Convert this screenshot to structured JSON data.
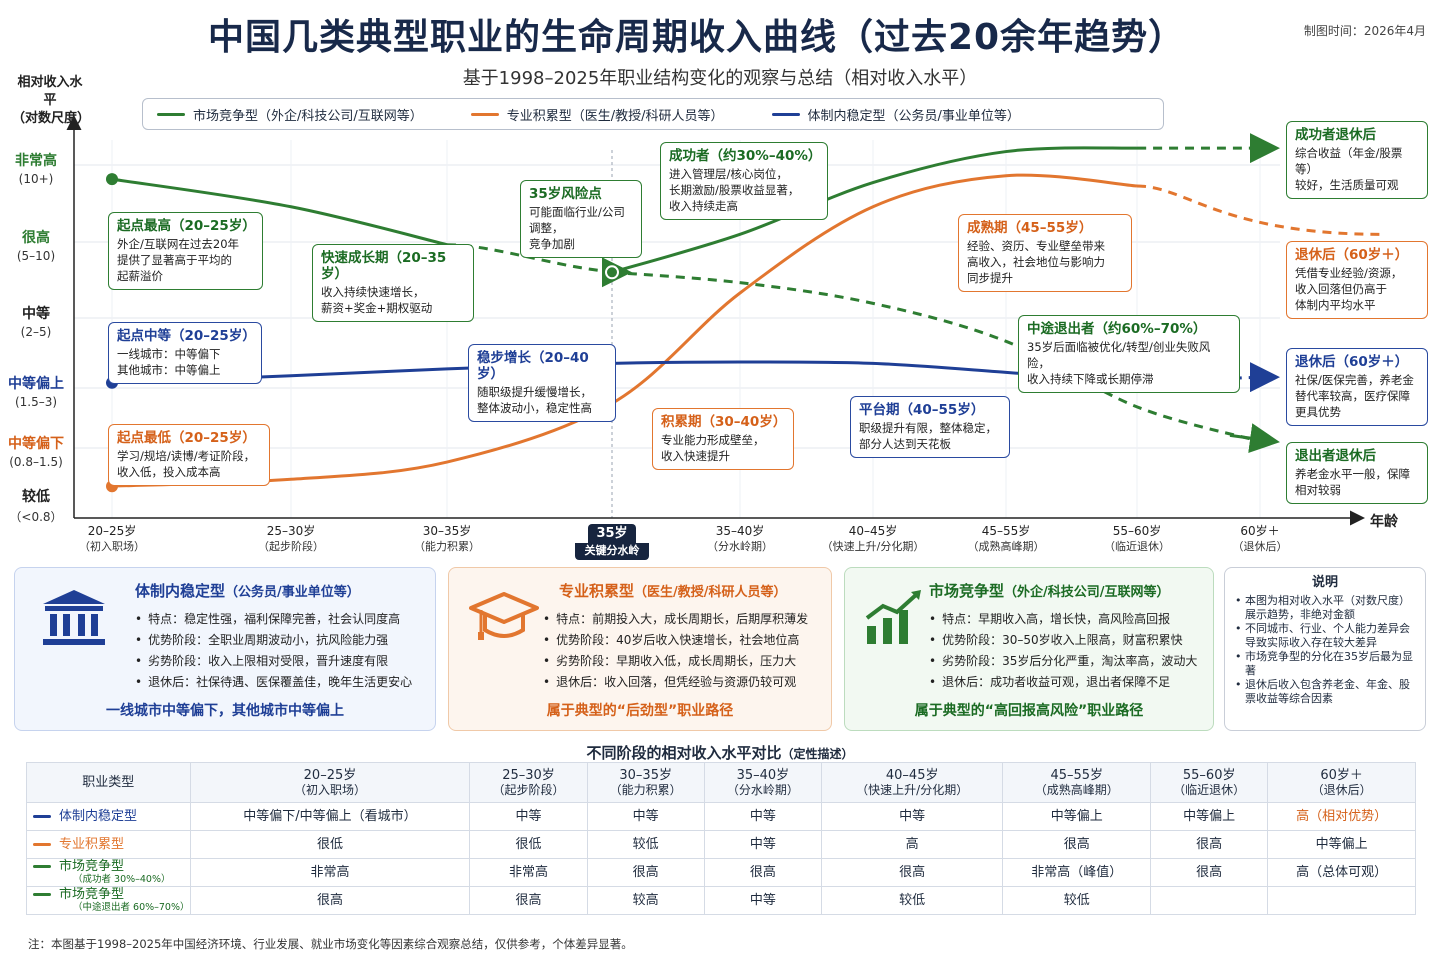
{
  "title": "中国几类典型职业的生命周期收入曲线（过去20余年趋势）",
  "date": "制图时间：2026年4月",
  "subtitle": "基于1998–2025年职业结构变化的观察与总结（相对收入水平）",
  "legend": {
    "market": "市场竞争型（外企/科技公司/互联网等）",
    "pro": "专业积累型（医生/教授/科研人员等）",
    "stable": "体制内稳定型（公务员/事业单位等）"
  },
  "colors": {
    "green": "#2e7d32",
    "orange": "#e2762f",
    "blue": "#1f3f96"
  },
  "yaxis": {
    "title1": "相对收入水平",
    "title2": "（对数尺度）",
    "levels": [
      {
        "label": "非常高",
        "range": "(10+)"
      },
      {
        "label": "很高",
        "range": "(5–10)"
      },
      {
        "label": "中等",
        "range": "(2–5)"
      },
      {
        "label": "中等偏上",
        "range": "(1.5–3)"
      },
      {
        "label": "中等偏下",
        "range": "(0.8–1.5)"
      },
      {
        "label": "较低",
        "range": "（<0.8）"
      }
    ]
  },
  "xaxis": {
    "name": "年龄",
    "ticks": [
      {
        "a": "20–25岁",
        "b": "（初入职场）"
      },
      {
        "a": "25–30岁",
        "b": "（起步阶段）"
      },
      {
        "a": "30–35岁",
        "b": "（能力积累）"
      },
      {
        "a": "35岁",
        "b": "关键分水岭"
      },
      {
        "a": "35–40岁",
        "b": "（分水岭期）"
      },
      {
        "a": "40–45岁",
        "b": "（快速上升/分化期）"
      },
      {
        "a": "45–55岁",
        "b": "（成熟高峰期）"
      },
      {
        "a": "55–60岁",
        "b": "（临近退休）"
      },
      {
        "a": "60岁＋",
        "b": "（退休后）"
      }
    ]
  },
  "annotations": {
    "g1": {
      "h": "起点最高（20–25岁）",
      "t": [
        "外企/互联网在过去20年",
        "提供了显著高于平均的",
        "起薪溢价"
      ]
    },
    "g2": {
      "h": "快速成长期（20–35岁）",
      "t": [
        "收入持续快速增长，",
        "薪资+奖金+期权驱动"
      ]
    },
    "g3": {
      "h": "35岁风险点",
      "t": [
        "可能面临行业/公司调整，",
        "竞争加剧"
      ]
    },
    "g4": {
      "h": "成功者（约30%–40%）",
      "t": [
        "进入管理层/核心岗位，",
        "长期激励/股票收益显著，",
        "收入持续走高"
      ]
    },
    "g5": {
      "h": "中途退出者（约60%–70%）",
      "t": [
        "35岁后面临被优化/转型/创业失败风险，",
        "收入持续下降或长期停滞"
      ]
    },
    "g6": {
      "h": "成功者退休后",
      "t": [
        "综合收益（年金/股票等）",
        "较好，生活质量可观"
      ]
    },
    "g7": {
      "h": "退出者退休后",
      "t": [
        "养老金水平一般，保障",
        "相对较弱"
      ]
    },
    "o1": {
      "h": "起点最低（20–25岁）",
      "t": [
        "学习/规培/读博/考证阶段，",
        "收入低，投入成本高"
      ]
    },
    "o2": {
      "h": "积累期（30–40岁）",
      "t": [
        "专业能力形成壁垒，",
        "收入快速提升"
      ]
    },
    "o3": {
      "h": "成熟期（45–55岁）",
      "t": [
        "经验、资历、专业壁垒带来",
        "高收入，社会地位与影响力",
        "同步提升"
      ]
    },
    "o4": {
      "h": "退休后（60岁＋）",
      "t": [
        "凭借专业经验/资源，",
        "收入回落但仍高于",
        "体制内平均水平"
      ]
    },
    "b1": {
      "h": "起点中等（20–25岁）",
      "t": [
        "一线城市：中等偏下",
        "其他城市：中等偏上"
      ]
    },
    "b2": {
      "h": "稳步增长（20–40岁）",
      "t": [
        "随职级提升缓慢增长，",
        "整体波动小，稳定性高"
      ]
    },
    "b3": {
      "h": "平台期（40–55岁）",
      "t": [
        "职级提升有限，整体稳定，",
        "部分人达到天花板"
      ]
    },
    "b4": {
      "h": "退休后（60岁＋）",
      "t": [
        "社保/医保完善，养老金",
        "替代率较高，医疗保障",
        "更具优势"
      ]
    }
  },
  "cards": [
    {
      "title": "体制内稳定型",
      "sub": "（公务员/事业单位等）",
      "items": [
        "特点：稳定性强，福利保障完善，社会认同度高",
        "优势阶段：全职业周期波动小，抗风险能力强",
        "劣势阶段：收入上限相对受限，晋升速度有限",
        "退休后：社保待遇、医保覆盖佳，晚年生活更安心"
      ],
      "foot": "一线城市中等偏下，其他城市中等偏上",
      "icon": "government-building-icon"
    },
    {
      "title": "专业积累型",
      "sub": "（医生/教授/科研人员等）",
      "items": [
        "特点：前期投入大，成长周期长，后期厚积薄发",
        "优势阶段：40岁后收入快速增长，社会地位高",
        "劣势阶段：早期收入低，成长周期长，压力大",
        "退休后：收入回落，但凭经验与资源仍较可观"
      ],
      "foot": "属于典型的“后劲型”职业路径",
      "icon": "graduation-cap-icon"
    },
    {
      "title": "市场竞争型",
      "sub": "（外企/科技公司/互联网等）",
      "items": [
        "特点：早期收入高，增长快，高风险高回报",
        "优势阶段：30–50岁收入上限高，财富积累快",
        "劣势阶段：35岁后分化严重，淘汰率高，波动大",
        "退休后：成功者收益可观，退出者保障不足"
      ],
      "foot": "属于典型的“高回报高风险”职业路径",
      "icon": "growth-chart-icon"
    }
  ],
  "note": {
    "title": "说明",
    "items": [
      "本图为相对收入水平（对数尺度）展示趋势，非绝对金额",
      "不同城市、行业、个人能力差异会导致实际收入存在较大差异",
      "市场竞争型的分化在35岁后最为显著",
      "退休后收入包含养老金、年金、股票收益等综合因素"
    ]
  },
  "table": {
    "title": "不同阶段的相对收入水平对比",
    "title_note": "（定性描述）",
    "header": "职业类型",
    "columns": [
      {
        "a": "20–25岁",
        "b": "（初入职场）"
      },
      {
        "a": "25–30岁",
        "b": "（起步阶段）"
      },
      {
        "a": "30–35岁",
        "b": "（能力积累）"
      },
      {
        "a": "35–40岁",
        "b": "（分水岭期）"
      },
      {
        "a": "40–45岁",
        "b": "（快速上升/分化期）"
      },
      {
        "a": "45–55岁",
        "b": "（成熟高峰期）"
      },
      {
        "a": "55–60岁",
        "b": "（临近退休）"
      },
      {
        "a": "60岁＋",
        "b": "（退休后）"
      }
    ],
    "rows": [
      {
        "name": "体制内稳定型",
        "sub": "",
        "color": "#1f3f96",
        "cells": [
          "中等偏下/中等偏上（看城市）",
          "中等",
          "中等",
          "中等",
          "中等",
          "中等偏上",
          "中等偏上",
          "高（相对优势）"
        ],
        "highlight": 7
      },
      {
        "name": "专业积累型",
        "sub": "",
        "color": "#e2762f",
        "cells": [
          "很低",
          "很低",
          "较低",
          "中等",
          "高",
          "很高",
          "很高",
          "中等偏上"
        ],
        "highlight": -1
      },
      {
        "name": "市场竞争型",
        "sub": "（成功者 30%–40%）",
        "color": "#2e7d32",
        "cells": [
          "非常高",
          "非常高",
          "很高",
          "很高",
          "很高",
          "非常高（峰值）",
          "很高",
          "高（总体可观）"
        ],
        "highlight": -1
      },
      {
        "name": "市场竞争型",
        "sub": "（中途退出者 60%–70%）",
        "color": "#2e7d32",
        "cells": [
          "很高",
          "很高",
          "较高",
          "中等",
          "较低",
          "较低",
          "",
          ""
        ],
        "highlight": -1
      }
    ]
  },
  "footnote": "注：本图基于1998–2025年中国经济环境、行业发展、就业市场变化等因素综合观察总结，仅供参考，个体差异显著。",
  "chart_data": {
    "type": "line",
    "title": "中国几类典型职业的生命周期收入曲线（过去20余年趋势）",
    "xlabel": "年龄",
    "ylabel": "相对收入水平（对数尺度）",
    "categories": [
      "20–25岁",
      "25–30岁",
      "30–35岁",
      "35岁",
      "35–40岁",
      "40–45岁",
      "45–55岁",
      "55–60岁",
      "60岁＋"
    ],
    "y_levels": [
      "较低",
      "中等偏下",
      "中等偏上",
      "中等",
      "很高",
      "非常高"
    ],
    "series": [
      {
        "name": "市场竞争型（外企/科技公司/互联网等）",
        "segment": "20–35岁",
        "x": [
          0,
          1,
          2,
          3
        ],
        "y": [
          4.65,
          4.25,
          3.7,
          3.3
        ]
      },
      {
        "name": "市场竞争型（外企/科技公司/互联网等）",
        "segment": "成功者（约30%–40%）",
        "x": [
          3,
          4,
          5,
          6,
          7,
          8
        ],
        "y": [
          3.3,
          3.85,
          4.6,
          5.05,
          5.1,
          5.1
        ]
      },
      {
        "name": "市场竞争型（外企/科技公司/互联网等）",
        "segment": "中途退出者（约60%–70%）",
        "x": [
          3,
          4,
          5,
          6,
          7,
          8
        ],
        "y": [
          3.3,
          3.15,
          2.85,
          2.3,
          1.35,
          0.85
        ]
      },
      {
        "name": "专业积累型（医生/教授/科研人员等）",
        "x": [
          0,
          1,
          2,
          3,
          4,
          5,
          6,
          7,
          8
        ],
        "y": [
          0.2,
          0.3,
          0.55,
          1.4,
          3.0,
          4.25,
          4.7,
          4.55,
          3.85
        ]
      },
      {
        "name": "体制内稳定型（公务员/事业单位等）",
        "x": [
          0,
          1,
          2,
          3,
          4,
          5,
          6,
          7,
          8
        ],
        "y": [
          1.7,
          1.8,
          1.9,
          1.98,
          2.0,
          1.98,
          1.85,
          1.7,
          1.78
        ]
      }
    ]
  }
}
